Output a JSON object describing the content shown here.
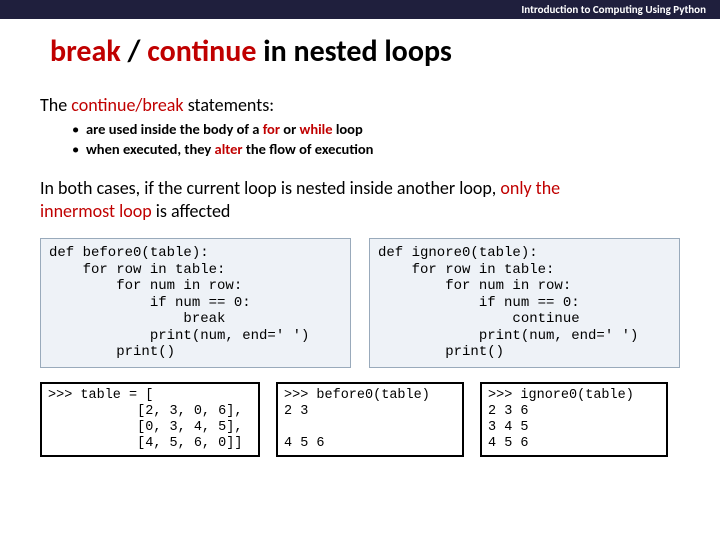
{
  "header": {
    "course": "Introduction to Computing Using Python"
  },
  "title": {
    "kw1": "break",
    "slash": " / ",
    "kw2": "continue",
    "rest": " in nested loops"
  },
  "intro": {
    "pre": "The ",
    "kw": "continue/break",
    "post": " statements:"
  },
  "bullets": [
    {
      "pre": "are used inside the body of a ",
      "kw1": "for",
      "mid": " or ",
      "kw2": "while",
      "post": " loop"
    },
    {
      "pre": "when executed, they ",
      "kw1": "alter",
      "post": " the flow of execution"
    }
  ],
  "note": {
    "line1_pre": "In both cases, if the current loop is nested inside another loop, ",
    "line1_kw": "only the",
    "line2_kw": "innermost loop",
    "line2_post": " is affected"
  },
  "code_left": "def before0(table):\n    for row in table:\n        for num in row:\n            if num == 0:\n                break\n            print(num, end=' ')\n        print()",
  "code_right": "def ignore0(table):\n    for row in table:\n        for num in row:\n            if num == 0:\n                continue\n            print(num, end=' ')\n        print()",
  "shell": {
    "table": ">>> table = [\n           [2, 3, 0, 6],\n           [0, 3, 4, 5],\n           [4, 5, 6, 0]]",
    "before": ">>> before0(table)\n2 3\n\n4 5 6",
    "ignore": ">>> ignore0(table)\n2 3 6\n3 4 5\n4 5 6"
  },
  "colors": {
    "header_bg": "#1f1f3d",
    "keyword": "#c00000",
    "code_bg": "#eef2f7",
    "code_border": "#99aabb",
    "shell_border": "#000000",
    "page_bg": "#ffffff"
  }
}
